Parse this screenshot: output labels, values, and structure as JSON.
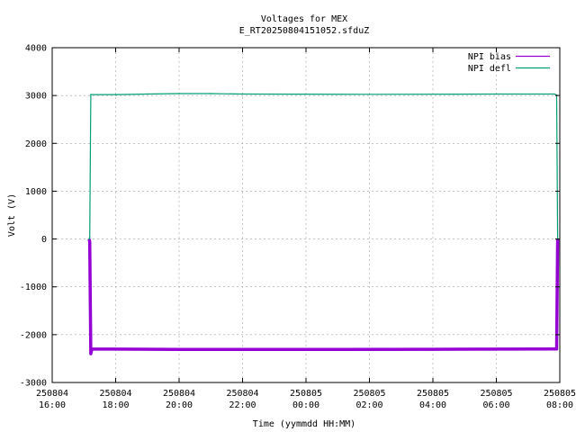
{
  "chart_data": {
    "type": "line",
    "title": "Voltages for MEX",
    "subtitle": "E_RT20250804151052.sfduZ",
    "xlabel": "Time (yymmdd HH:MM)",
    "ylabel": "Volt (V)",
    "xlim": [
      "2025-08-04 16:00",
      "2025-08-05 08:00"
    ],
    "ylim": [
      -3000,
      4000
    ],
    "yticks": [
      -3000,
      -2000,
      -1000,
      0,
      1000,
      2000,
      3000,
      4000
    ],
    "ytick_labels": [
      "-3000",
      "-2000",
      "-1000",
      "0",
      "1000",
      "2000",
      "3000",
      "4000"
    ],
    "xticks": [
      {
        "date": "250804",
        "time": "16:00",
        "value": "2025-08-04 16:00"
      },
      {
        "date": "250804",
        "time": "18:00",
        "value": "2025-08-04 18:00"
      },
      {
        "date": "250804",
        "time": "20:00",
        "value": "2025-08-04 20:00"
      },
      {
        "date": "250804",
        "time": "22:00",
        "value": "2025-08-04 22:00"
      },
      {
        "date": "250805",
        "time": "00:00",
        "value": "2025-08-05 00:00"
      },
      {
        "date": "250805",
        "time": "02:00",
        "value": "2025-08-05 02:00"
      },
      {
        "date": "250805",
        "time": "04:00",
        "value": "2025-08-05 04:00"
      },
      {
        "date": "250805",
        "time": "06:00",
        "value": "2025-08-05 06:00"
      },
      {
        "date": "250805",
        "time": "08:00",
        "value": "2025-08-05 08:00"
      }
    ],
    "grid": true,
    "legend_position": "top-right",
    "series": [
      {
        "name": "NPI bias",
        "color": "#9400d3",
        "points": [
          {
            "t": "2025-08-04 17:10",
            "v": 0
          },
          {
            "t": "2025-08-04 17:11",
            "v": -60
          },
          {
            "t": "2025-08-04 17:13",
            "v": -2400
          },
          {
            "t": "2025-08-04 17:15",
            "v": -2300
          },
          {
            "t": "2025-08-04 20:00",
            "v": -2310
          },
          {
            "t": "2025-08-05 00:00",
            "v": -2310
          },
          {
            "t": "2025-08-05 04:00",
            "v": -2305
          },
          {
            "t": "2025-08-05 07:50",
            "v": -2300
          },
          {
            "t": "2025-08-05 07:54",
            "v": -2300
          },
          {
            "t": "2025-08-05 07:56",
            "v": 0
          }
        ]
      },
      {
        "name": "NPI defl",
        "color": "#009e73",
        "points": [
          {
            "t": "2025-08-04 17:10",
            "v": 0
          },
          {
            "t": "2025-08-04 17:11",
            "v": 30
          },
          {
            "t": "2025-08-04 17:13",
            "v": 3020
          },
          {
            "t": "2025-08-04 18:00",
            "v": 3020
          },
          {
            "t": "2025-08-04 19:00",
            "v": 3030
          },
          {
            "t": "2025-08-04 20:00",
            "v": 3040
          },
          {
            "t": "2025-08-04 21:00",
            "v": 3040
          },
          {
            "t": "2025-08-04 22:00",
            "v": 3030
          },
          {
            "t": "2025-08-05 02:00",
            "v": 3025
          },
          {
            "t": "2025-08-05 06:00",
            "v": 3030
          },
          {
            "t": "2025-08-05 07:50",
            "v": 3030
          },
          {
            "t": "2025-08-05 07:54",
            "v": 3010
          },
          {
            "t": "2025-08-05 07:56",
            "v": 0
          }
        ]
      }
    ]
  }
}
